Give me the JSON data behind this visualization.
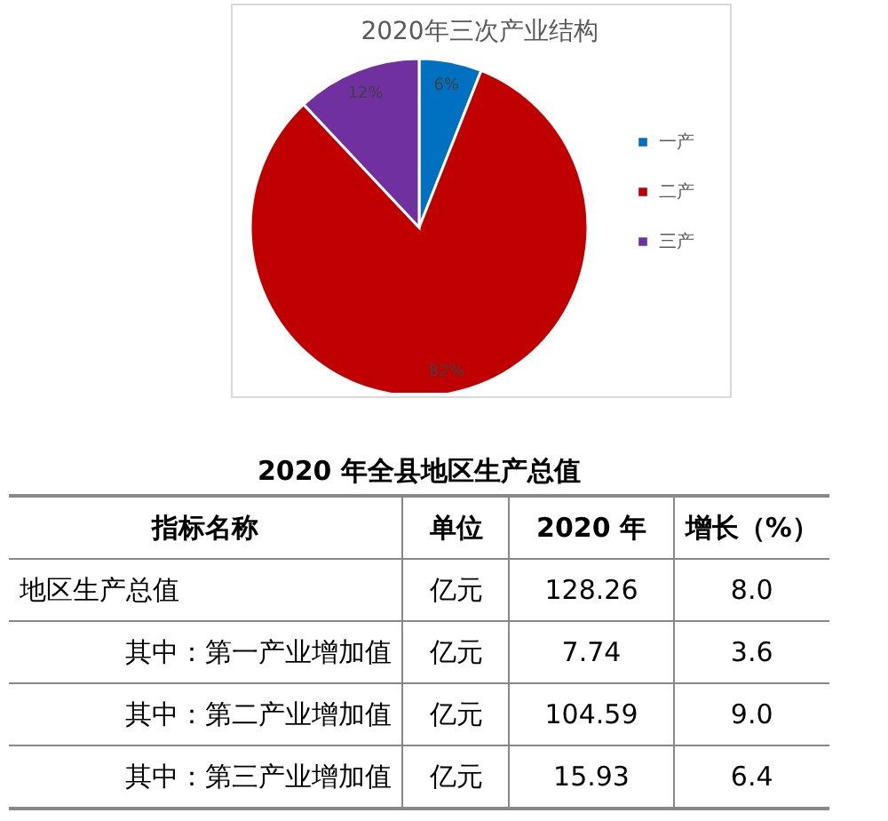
{
  "chart_data": [
    {
      "type": "pie",
      "title": "2020年三次产业结构",
      "categories": [
        "一产",
        "二产",
        "三产"
      ],
      "values": [
        6,
        82,
        12
      ],
      "colors": [
        "#0070c0",
        "#c00000",
        "#7030a0"
      ],
      "value_labels": [
        "6%",
        "82%",
        "12%"
      ],
      "legend": "right"
    },
    {
      "type": "other",
      "title": "2020 年全县地区生产总值",
      "annotations": [
        "指标名称",
        "单位",
        "2020 年",
        "增长（%）",
        "地区生产总值",
        "亿元",
        "128.26",
        "8.0",
        "其中：第一产业增加值",
        "亿元",
        "7.74",
        "3.6",
        "其中：第二产业增加值",
        "亿元",
        "104.59",
        "9.0",
        "其中：第三产业增加值",
        "亿元",
        "15.93",
        "6.4"
      ]
    }
  ]
}
